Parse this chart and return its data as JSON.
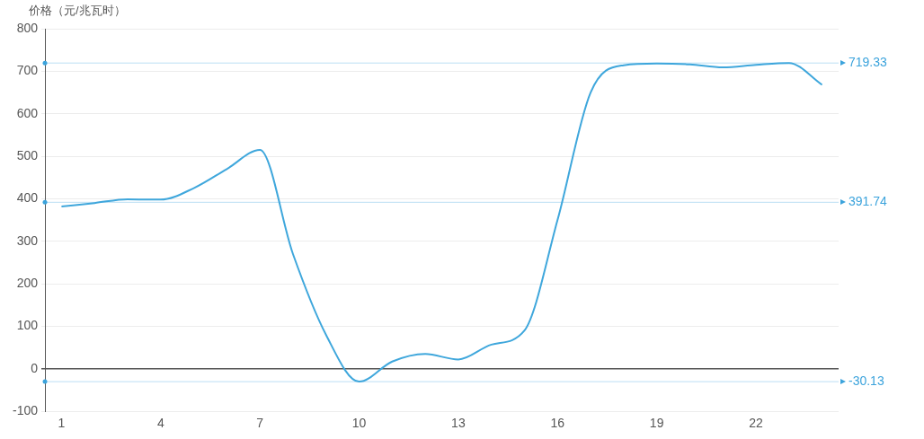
{
  "chart_data": {
    "type": "line",
    "ylabel": "价格（元/兆瓦时）",
    "categories": [
      "1",
      null,
      null,
      "4",
      null,
      null,
      "7",
      null,
      null,
      "10",
      null,
      null,
      "13",
      null,
      null,
      "16",
      null,
      null,
      "19",
      null,
      null,
      "22",
      null,
      null
    ],
    "series": [
      {
        "color": "#3fa7dc",
        "values": [
          382,
          390,
          399,
          398,
          425,
          470,
          515,
          270,
          80,
          -30.13,
          17,
          35,
          22,
          57,
          90,
          350,
          650,
          714,
          718,
          716,
          709,
          715,
          719.33,
          668
        ]
      }
    ],
    "ylim": [
      -100,
      800
    ],
    "yticks": [
      -100,
      0,
      100,
      200,
      300,
      400,
      500,
      600,
      700,
      800
    ],
    "ref_lines": [
      {
        "axis": "y",
        "value": 719.33,
        "label": "719.33",
        "color": "#3ba3dc"
      },
      {
        "axis": "y",
        "value": 391.74,
        "label": "391.74",
        "color": "#3ba3dc"
      },
      {
        "axis": "y",
        "value": -30.13,
        "label": "-30.13",
        "color": "#3ba3dc"
      }
    ],
    "grid": "y",
    "legend": false,
    "marker": "none",
    "line_style": "solid"
  }
}
